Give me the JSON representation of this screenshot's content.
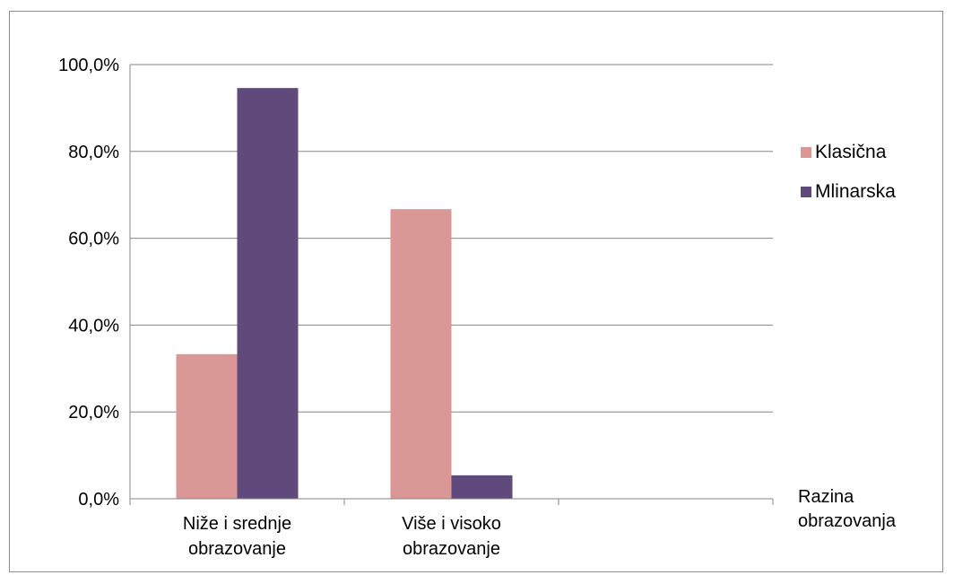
{
  "chart_data": {
    "type": "bar",
    "categories": [
      "Niže i srednje obrazovanje",
      "Više i visoko obrazovanje"
    ],
    "category_label_lines": [
      [
        "Niže i srednje",
        "obrazovanje"
      ],
      [
        "Više i visoko",
        "obrazovanje"
      ]
    ],
    "series": [
      {
        "name": "Klasična",
        "values": [
          33.3,
          66.7
        ],
        "color": "#d99795"
      },
      {
        "name": "Mlinarska",
        "values": [
          94.6,
          5.4
        ],
        "color": "#604a7b"
      }
    ],
    "xlabel_lines": [
      "Razina",
      "obrazovanja"
    ],
    "ylabel": "",
    "ylim": [
      0,
      100
    ],
    "yticks": [
      0,
      20,
      40,
      60,
      80,
      100
    ],
    "ytick_labels": [
      "0,0%",
      "20,0%",
      "40,0%",
      "60,0%",
      "80,0%",
      "100,0%"
    ],
    "grid": true,
    "legend_position": "right",
    "empty_trailing_category_slot": true
  }
}
